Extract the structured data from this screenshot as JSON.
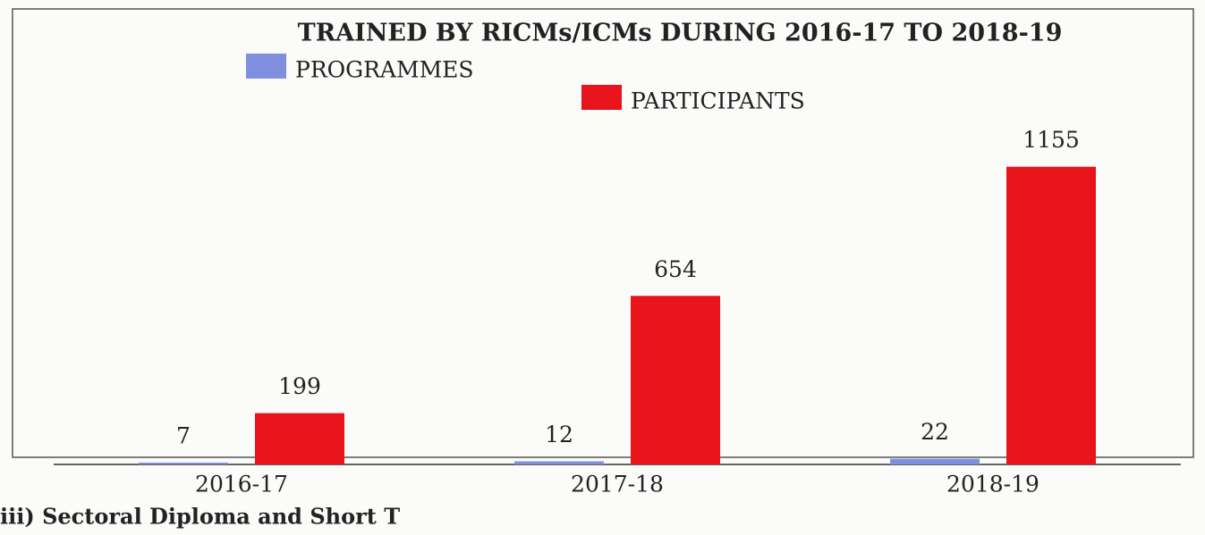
{
  "chart_data": {
    "type": "bar",
    "title": "TRAINED BY RICMs/ICMs DURING  2016-17 TO 2018-19",
    "categories": [
      "2016-17",
      "2017-18",
      "2018-19"
    ],
    "series": [
      {
        "name": "PROGRAMMES",
        "color": "#7f8fe0",
        "values": [
          7,
          12,
          22
        ]
      },
      {
        "name": "PARTICIPANTS",
        "color": "#e8141c",
        "values": [
          199,
          654,
          1155
        ]
      }
    ],
    "caption": "iii) Sectoral Diploma and Short T"
  }
}
